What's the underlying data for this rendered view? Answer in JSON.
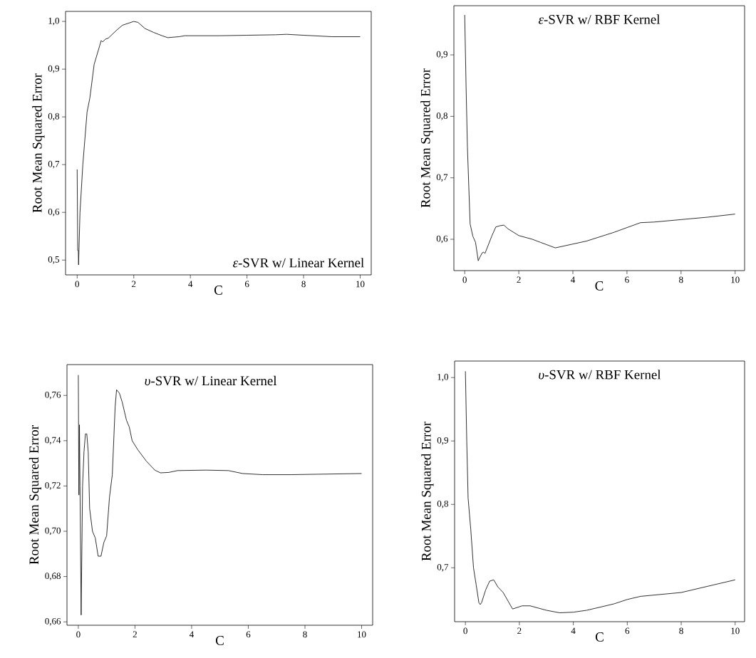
{
  "chart_data": [
    {
      "type": "line",
      "title": "*ε*-SVR w/ Linear Kernel",
      "xlabel": "C",
      "ylabel": "Root Mean Squared Error",
      "color": "#1a1a1a",
      "x": [
        0,
        0.02,
        0.04,
        0.05,
        0.1,
        0.2,
        0.35,
        0.45,
        0.6,
        0.7,
        0.85,
        0.9,
        1.0,
        1.1,
        1.4,
        1.6,
        1.8,
        2.0,
        2.15,
        2.4,
        2.7,
        3.0,
        3.2,
        3.6,
        3.8,
        5,
        6,
        7,
        7.4,
        8,
        9,
        10
      ],
      "values": [
        0.69,
        0.52,
        0.52,
        0.49,
        0.6,
        0.7,
        0.81,
        0.84,
        0.91,
        0.93,
        0.96,
        0.957,
        0.963,
        0.965,
        0.982,
        0.992,
        0.996,
        1.0,
        0.998,
        0.985,
        0.977,
        0.97,
        0.966,
        0.968,
        0.97,
        0.97,
        0.971,
        0.972,
        0.973,
        0.971,
        0.968,
        0.968
      ],
      "xlim": [
        -0.41,
        10.39
      ],
      "ylim": [
        0.469,
        1.021
      ],
      "xticks": [
        0,
        2,
        4,
        6,
        8,
        10
      ],
      "yticks": [
        {
          "value": 0.5,
          "label": "0,5"
        },
        {
          "value": 0.6,
          "label": "0,6"
        },
        {
          "value": 0.7,
          "label": "0,7"
        },
        {
          "value": 0.8,
          "label": "0,8"
        },
        {
          "value": 0.9,
          "label": "0,9"
        },
        {
          "value": 1.0,
          "label": "1,0"
        }
      ]
    },
    {
      "type": "line",
      "title": "*ε*-SVR w/ RBF Kernel",
      "xlabel": "C",
      "ylabel": "Root Mean Squared Error",
      "color": "#1a1a1a",
      "x": [
        0,
        0.05,
        0.1,
        0.2,
        0.3,
        0.4,
        0.5,
        0.55,
        0.65,
        0.7,
        0.75,
        1.0,
        1.15,
        1.3,
        1.45,
        1.6,
        2.0,
        2.5,
        2.8,
        3.35,
        4.5,
        5.5,
        6.5,
        7,
        8,
        9,
        10
      ],
      "values": [
        0.965,
        0.85,
        0.75,
        0.625,
        0.605,
        0.595,
        0.565,
        0.57,
        0.578,
        0.579,
        0.577,
        0.605,
        0.62,
        0.622,
        0.623,
        0.617,
        0.606,
        0.6,
        0.595,
        0.586,
        0.597,
        0.611,
        0.627,
        0.628,
        0.632,
        0.636,
        0.641
      ],
      "xlim": [
        -0.4,
        10.35
      ],
      "ylim": [
        0.549,
        0.98
      ],
      "xticks": [
        0,
        2,
        4,
        6,
        8,
        10
      ],
      "yticks": [
        {
          "value": 0.6,
          "label": "0,6"
        },
        {
          "value": 0.7,
          "label": "0,7"
        },
        {
          "value": 0.8,
          "label": "0,8"
        },
        {
          "value": 0.9,
          "label": "0,9"
        }
      ]
    },
    {
      "type": "line",
      "title": "*υ*-SVR w/ Linear Kernel",
      "xlabel": "C",
      "ylabel": "Root Mean Squared Error",
      "color": "#1a1a1a",
      "x": [
        0,
        0.02,
        0.04,
        0.06,
        0.1,
        0.15,
        0.2,
        0.25,
        0.3,
        0.35,
        0.4,
        0.5,
        0.6,
        0.7,
        0.8,
        0.9,
        1.0,
        1.1,
        1.2,
        1.3,
        1.35,
        1.45,
        1.55,
        1.7,
        1.8,
        1.9,
        2.1,
        2.4,
        2.7,
        2.9,
        3.2,
        3.5,
        4.5,
        5.3,
        5.8,
        6.5,
        7.5,
        8.5,
        10
      ],
      "values": [
        0.769,
        0.716,
        0.747,
        0.72,
        0.663,
        0.72,
        0.735,
        0.743,
        0.743,
        0.735,
        0.71,
        0.7,
        0.697,
        0.689,
        0.689,
        0.695,
        0.698,
        0.715,
        0.725,
        0.755,
        0.7625,
        0.761,
        0.757,
        0.749,
        0.746,
        0.74,
        0.736,
        0.731,
        0.727,
        0.7258,
        0.726,
        0.7268,
        0.727,
        0.7268,
        0.7255,
        0.725,
        0.725,
        0.7252,
        0.7255
      ],
      "xlim": [
        -0.4,
        10.39
      ],
      "ylim": [
        0.6585,
        0.7736
      ],
      "xticks": [
        0,
        2,
        4,
        6,
        8,
        10
      ],
      "yticks": [
        {
          "value": 0.66,
          "label": "0,66"
        },
        {
          "value": 0.68,
          "label": "0,68"
        },
        {
          "value": 0.7,
          "label": "0,70"
        },
        {
          "value": 0.72,
          "label": "0,72"
        },
        {
          "value": 0.74,
          "label": "0,74"
        },
        {
          "value": 0.76,
          "label": "0,76"
        }
      ]
    },
    {
      "type": "line",
      "title": "*υ*-SVR w/ RBF Kernel",
      "xlabel": "C",
      "ylabel": "Root Mean Squared Error",
      "color": "#1a1a1a",
      "x": [
        0,
        0.05,
        0.1,
        0.2,
        0.3,
        0.4,
        0.5,
        0.55,
        0.6,
        0.75,
        0.9,
        1.05,
        1.2,
        1.4,
        1.75,
        2.1,
        2.4,
        3.0,
        3.5,
        4.0,
        4.5,
        5,
        5.5,
        6.0,
        6.5,
        7.5,
        8,
        9,
        10
      ],
      "values": [
        1.01,
        0.9,
        0.81,
        0.76,
        0.7,
        0.673,
        0.645,
        0.642,
        0.645,
        0.665,
        0.679,
        0.681,
        0.67,
        0.661,
        0.635,
        0.64,
        0.64,
        0.633,
        0.629,
        0.63,
        0.633,
        0.638,
        0.643,
        0.65,
        0.655,
        0.659,
        0.661,
        0.671,
        0.681
      ],
      "xlim": [
        -0.4,
        10.35
      ],
      "ylim": [
        0.615,
        1.026
      ],
      "xticks": [
        0,
        2,
        4,
        6,
        8,
        10
      ],
      "yticks": [
        {
          "value": 0.7,
          "label": "0,7"
        },
        {
          "value": 0.8,
          "label": "0,8"
        },
        {
          "value": 0.9,
          "label": "0,9"
        },
        {
          "value": 1.0,
          "label": "1,0"
        }
      ]
    }
  ]
}
